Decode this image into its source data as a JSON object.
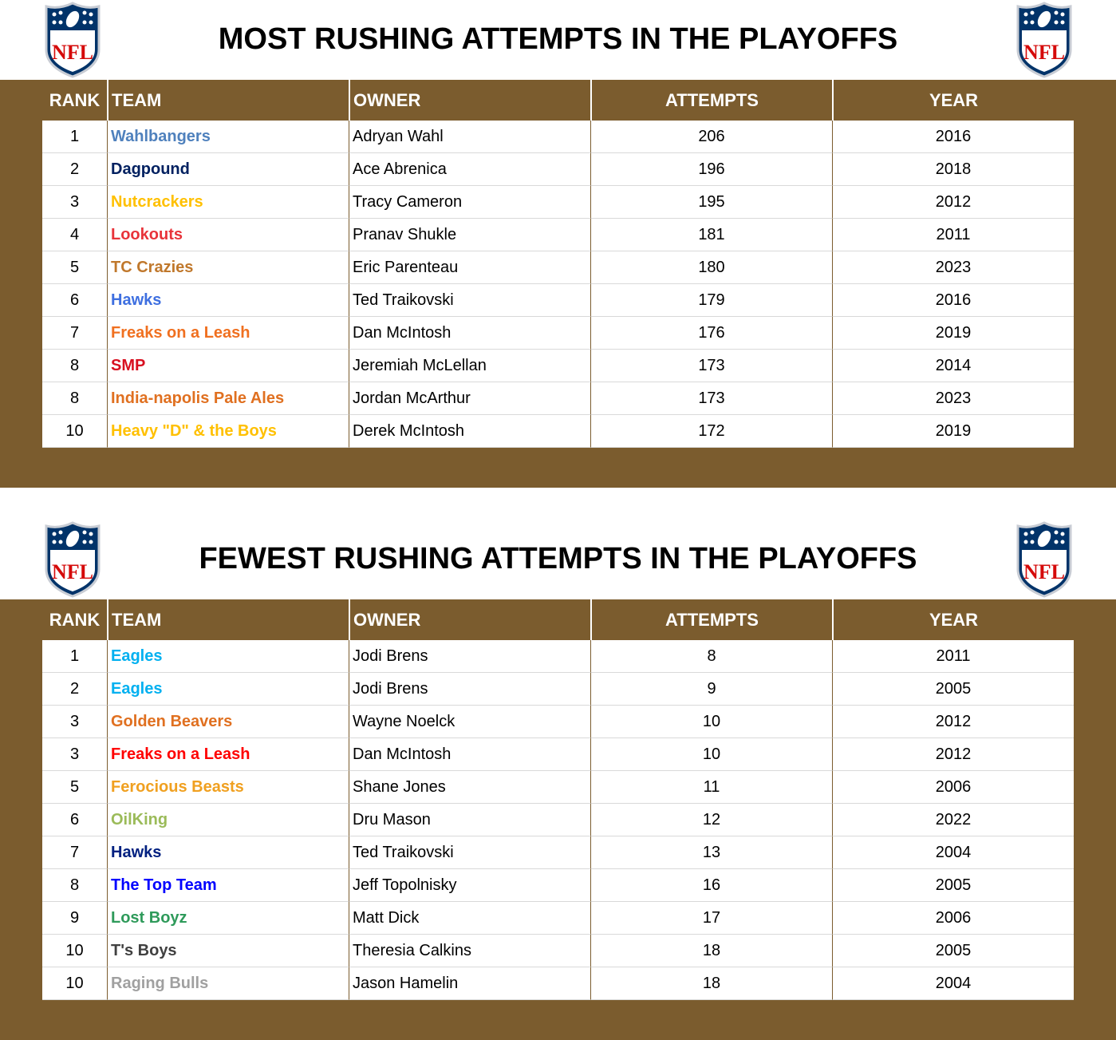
{
  "logo_text": "NFL",
  "tables": [
    {
      "title": "MOST RUSHING ATTEMPTS IN THE PLAYOFFS",
      "columns": [
        "RANK",
        "TEAM",
        "OWNER",
        "ATTEMPTS",
        "YEAR"
      ],
      "rows": [
        {
          "rank": 1,
          "team": "Wahlbangers",
          "owner": "Adryan Wahl",
          "attempts": 206,
          "year": 2016,
          "color": "#4f81bd"
        },
        {
          "rank": 2,
          "team": "Dagpound",
          "owner": "Ace Abrenica",
          "attempts": 196,
          "year": 2018,
          "color": "#002060"
        },
        {
          "rank": 3,
          "team": "Nutcrackers",
          "owner": "Tracy Cameron",
          "attempts": 195,
          "year": 2012,
          "color": "#ffc000"
        },
        {
          "rank": 4,
          "team": "Lookouts",
          "owner": "Pranav Shukle",
          "attempts": 181,
          "year": 2011,
          "color": "#e8333a"
        },
        {
          "rank": 5,
          "team": "TC Crazies",
          "owner": "Eric Parenteau",
          "attempts": 180,
          "year": 2023,
          "color": "#c0782c"
        },
        {
          "rank": 6,
          "team": "Hawks",
          "owner": "Ted Traikovski",
          "attempts": 179,
          "year": 2016,
          "color": "#3e6fe0"
        },
        {
          "rank": 7,
          "team": "Freaks on a Leash",
          "owner": "Dan McIntosh",
          "attempts": 176,
          "year": 2019,
          "color": "#f07020"
        },
        {
          "rank": 8,
          "team": "SMP",
          "owner": "Jeremiah McLellan",
          "attempts": 173,
          "year": 2014,
          "color": "#d81020"
        },
        {
          "rank": 8,
          "team": "India-napolis Pale Ales",
          "owner": "Jordan McArthur",
          "attempts": 173,
          "year": 2023,
          "color": "#e07020"
        },
        {
          "rank": 10,
          "team": "Heavy \"D\" & the Boys",
          "owner": "Derek McIntosh",
          "attempts": 172,
          "year": 2019,
          "color": "#ffc000"
        }
      ]
    },
    {
      "title": "FEWEST RUSHING ATTEMPTS IN THE PLAYOFFS",
      "columns": [
        "RANK",
        "TEAM",
        "OWNER",
        "ATTEMPTS",
        "YEAR"
      ],
      "rows": [
        {
          "rank": 1,
          "team": "Eagles",
          "owner": "Jodi Brens",
          "attempts": 8,
          "year": 2011,
          "color": "#00b0f0"
        },
        {
          "rank": 2,
          "team": "Eagles",
          "owner": "Jodi Brens",
          "attempts": 9,
          "year": 2005,
          "color": "#00b0f0"
        },
        {
          "rank": 3,
          "team": "Golden Beavers",
          "owner": "Wayne Noelck",
          "attempts": 10,
          "year": 2012,
          "color": "#e07020"
        },
        {
          "rank": 3,
          "team": "Freaks on a Leash",
          "owner": "Dan McIntosh",
          "attempts": 10,
          "year": 2012,
          "color": "#ff0000"
        },
        {
          "rank": 5,
          "team": "Ferocious Beasts",
          "owner": "Shane Jones",
          "attempts": 11,
          "year": 2006,
          "color": "#f0a020"
        },
        {
          "rank": 6,
          "team": "OilKing",
          "owner": "Dru Mason",
          "attempts": 12,
          "year": 2022,
          "color": "#9bbb59"
        },
        {
          "rank": 7,
          "team": "Hawks",
          "owner": "Ted Traikovski",
          "attempts": 13,
          "year": 2004,
          "color": "#002080"
        },
        {
          "rank": 8,
          "team": "The Top Team",
          "owner": "Jeff Topolnisky",
          "attempts": 16,
          "year": 2005,
          "color": "#0000ff"
        },
        {
          "rank": 9,
          "team": "Lost Boyz",
          "owner": "Matt Dick",
          "attempts": 17,
          "year": 2006,
          "color": "#2e9a5a"
        },
        {
          "rank": 10,
          "team": "T's Boys",
          "owner": "Theresia Calkins",
          "attempts": 18,
          "year": 2005,
          "color": "#404040"
        },
        {
          "rank": 10,
          "team": "Raging Bulls",
          "owner": "Jason Hamelin",
          "attempts": 18,
          "year": 2004,
          "color": "#a0a0a0"
        }
      ]
    }
  ]
}
